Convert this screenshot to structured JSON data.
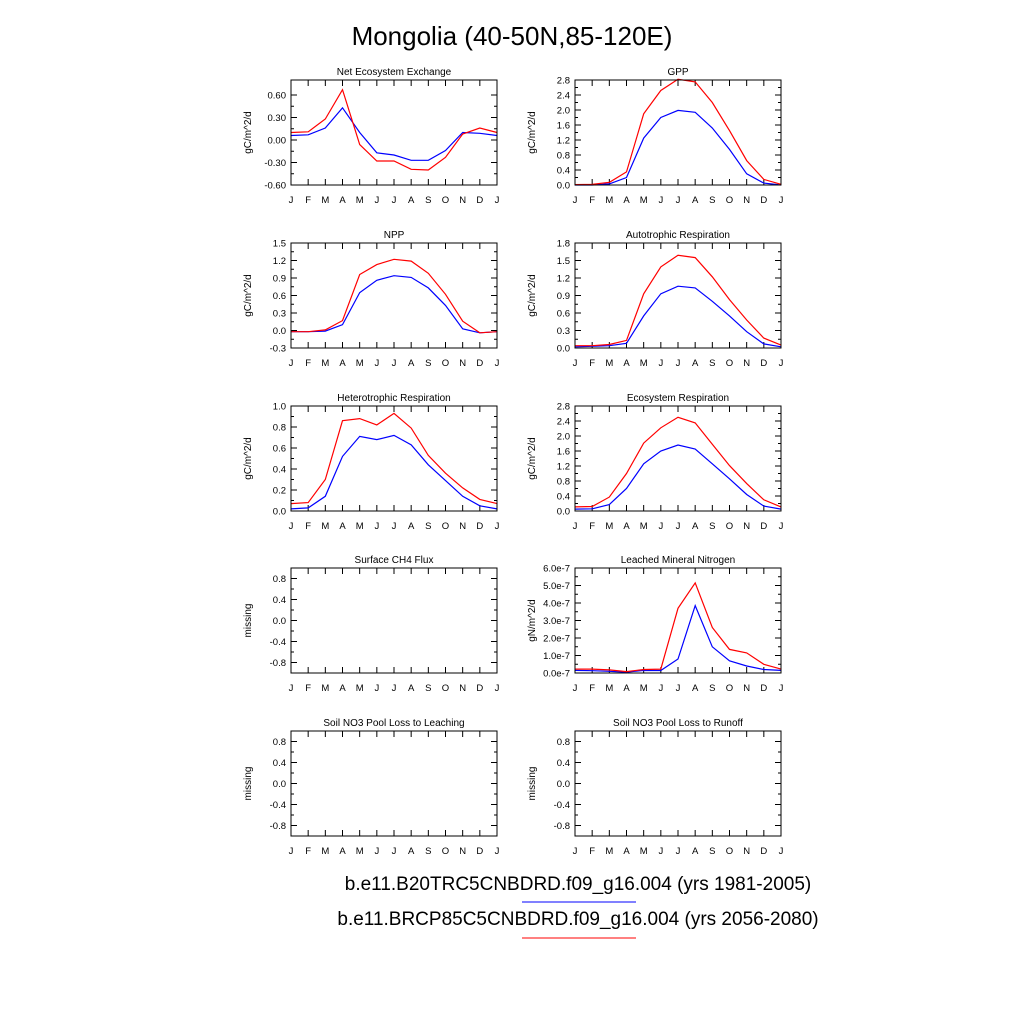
{
  "page": {
    "title": "Mongolia (40-50N,85-120E)",
    "months": [
      "J",
      "F",
      "M",
      "A",
      "M",
      "J",
      "J",
      "A",
      "S",
      "O",
      "N",
      "D",
      "J"
    ]
  },
  "legend": [
    {
      "label": "b.e11.B20TRC5CNBDRD.f09_g16.004 (yrs 1981-2005)",
      "color": "#0000ff"
    },
    {
      "label": "b.e11.BRCP85C5CNBDRD.f09_g16.004 (yrs 2056-2080)",
      "color": "#ff0000"
    }
  ],
  "colors": {
    "historical": "#0000ff",
    "future": "#ff0000"
  },
  "chart_data": [
    {
      "type": "line",
      "title": "Net Ecosystem Exchange",
      "ylabel": "gC/m^2/d",
      "ylim": [
        -0.6,
        0.8
      ],
      "yticks": [
        -0.6,
        -0.3,
        0.0,
        0.3,
        0.6
      ],
      "tick_format": "0.00",
      "x": [
        "J",
        "F",
        "M",
        "A",
        "M",
        "J",
        "J",
        "A",
        "S",
        "O",
        "N",
        "D",
        "J"
      ],
      "series": [
        {
          "color": "#0000ff",
          "values": [
            0.06,
            0.07,
            0.16,
            0.43,
            0.1,
            -0.17,
            -0.2,
            -0.27,
            -0.27,
            -0.14,
            0.1,
            0.09,
            0.06
          ]
        },
        {
          "color": "#ff0000",
          "values": [
            0.1,
            0.11,
            0.28,
            0.67,
            -0.06,
            -0.28,
            -0.28,
            -0.39,
            -0.4,
            -0.23,
            0.08,
            0.16,
            0.1
          ]
        }
      ]
    },
    {
      "type": "line",
      "title": "GPP",
      "ylabel": "gC/m^2/d",
      "ylim": [
        0.0,
        2.8
      ],
      "yticks": [
        0.0,
        0.4,
        0.8,
        1.2,
        1.6,
        2.0,
        2.4,
        2.8
      ],
      "tick_format": "0.0",
      "x": [
        "J",
        "F",
        "M",
        "A",
        "M",
        "J",
        "J",
        "A",
        "S",
        "O",
        "N",
        "D",
        "J"
      ],
      "series": [
        {
          "color": "#0000ff",
          "values": [
            0.0,
            0.0,
            0.03,
            0.2,
            1.25,
            1.8,
            1.99,
            1.94,
            1.52,
            0.95,
            0.3,
            0.05,
            0.0
          ]
        },
        {
          "color": "#ff0000",
          "values": [
            0.01,
            0.02,
            0.07,
            0.35,
            1.9,
            2.52,
            2.82,
            2.75,
            2.2,
            1.45,
            0.65,
            0.15,
            0.02
          ]
        }
      ]
    },
    {
      "type": "line",
      "title": "NPP",
      "ylabel": "gC/m^2/d",
      "ylim": [
        -0.3,
        1.5
      ],
      "yticks": [
        -0.3,
        0.0,
        0.3,
        0.6,
        0.9,
        1.2,
        1.5
      ],
      "tick_format": "0.0",
      "x": [
        "J",
        "F",
        "M",
        "A",
        "M",
        "J",
        "J",
        "A",
        "S",
        "O",
        "N",
        "D",
        "J"
      ],
      "series": [
        {
          "color": "#0000ff",
          "values": [
            -0.02,
            -0.02,
            -0.01,
            0.1,
            0.65,
            0.86,
            0.94,
            0.91,
            0.73,
            0.43,
            0.03,
            -0.04,
            -0.02
          ]
        },
        {
          "color": "#ff0000",
          "values": [
            -0.02,
            -0.02,
            0.01,
            0.17,
            0.96,
            1.13,
            1.22,
            1.19,
            0.98,
            0.62,
            0.16,
            -0.04,
            -0.02
          ]
        }
      ]
    },
    {
      "type": "line",
      "title": "Autotrophic Respiration",
      "ylabel": "gC/m^2/d",
      "ylim": [
        0.0,
        1.8
      ],
      "yticks": [
        0.0,
        0.3,
        0.6,
        0.9,
        1.2,
        1.5,
        1.8
      ],
      "tick_format": "0.0",
      "x": [
        "J",
        "F",
        "M",
        "A",
        "M",
        "J",
        "J",
        "A",
        "S",
        "O",
        "N",
        "D",
        "J"
      ],
      "series": [
        {
          "color": "#0000ff",
          "values": [
            0.02,
            0.03,
            0.04,
            0.08,
            0.55,
            0.93,
            1.06,
            1.03,
            0.8,
            0.55,
            0.28,
            0.07,
            0.02
          ]
        },
        {
          "color": "#ff0000",
          "values": [
            0.04,
            0.04,
            0.06,
            0.13,
            0.93,
            1.39,
            1.59,
            1.55,
            1.22,
            0.83,
            0.48,
            0.17,
            0.05
          ]
        }
      ]
    },
    {
      "type": "line",
      "title": "Heterotrophic Respiration",
      "ylabel": "gC/m^2/d",
      "ylim": [
        0.0,
        1.0
      ],
      "yticks": [
        0.0,
        0.2,
        0.4,
        0.6,
        0.8,
        1.0
      ],
      "tick_format": "0.0",
      "x": [
        "J",
        "F",
        "M",
        "A",
        "M",
        "J",
        "J",
        "A",
        "S",
        "O",
        "N",
        "D",
        "J"
      ],
      "series": [
        {
          "color": "#0000ff",
          "values": [
            0.02,
            0.03,
            0.14,
            0.52,
            0.71,
            0.68,
            0.72,
            0.63,
            0.44,
            0.29,
            0.14,
            0.05,
            0.02
          ]
        },
        {
          "color": "#ff0000",
          "values": [
            0.07,
            0.08,
            0.3,
            0.86,
            0.88,
            0.82,
            0.93,
            0.79,
            0.53,
            0.36,
            0.22,
            0.11,
            0.07
          ]
        }
      ]
    },
    {
      "type": "line",
      "title": "Ecosystem Respiration",
      "ylabel": "gC/m^2/d",
      "ylim": [
        0.0,
        2.8
      ],
      "yticks": [
        0.0,
        0.4,
        0.8,
        1.2,
        1.6,
        2.0,
        2.4,
        2.8
      ],
      "tick_format": "0.0",
      "x": [
        "J",
        "F",
        "M",
        "A",
        "M",
        "J",
        "J",
        "A",
        "S",
        "O",
        "N",
        "D",
        "J"
      ],
      "series": [
        {
          "color": "#0000ff",
          "values": [
            0.05,
            0.06,
            0.17,
            0.6,
            1.26,
            1.6,
            1.76,
            1.65,
            1.26,
            0.86,
            0.44,
            0.13,
            0.05
          ]
        },
        {
          "color": "#ff0000",
          "values": [
            0.11,
            0.12,
            0.37,
            1.0,
            1.81,
            2.22,
            2.5,
            2.35,
            1.78,
            1.21,
            0.73,
            0.3,
            0.11
          ]
        }
      ]
    },
    {
      "type": "line",
      "title": "Surface CH4 Flux",
      "ylabel": "missing",
      "ylim": [
        -1.0,
        1.0
      ],
      "yticks": [
        -0.8,
        -0.4,
        0.0,
        0.4,
        0.8
      ],
      "tick_format": "0.0",
      "x": [
        "J",
        "F",
        "M",
        "A",
        "M",
        "J",
        "J",
        "A",
        "S",
        "O",
        "N",
        "D",
        "J"
      ],
      "series": []
    },
    {
      "type": "line",
      "title": "Leached Mineral Nitrogen",
      "ylabel": "gN/m^2/d",
      "ylim": [
        0,
        6e-07
      ],
      "yticks": [
        0,
        1e-07,
        2e-07,
        3e-07,
        4e-07,
        5e-07,
        6e-07
      ],
      "tick_format": "sci",
      "x": [
        "J",
        "F",
        "M",
        "A",
        "M",
        "J",
        "J",
        "A",
        "S",
        "O",
        "N",
        "D",
        "J"
      ],
      "series": [
        {
          "color": "#0000ff",
          "values": [
            1.5e-08,
            1.3e-08,
            1e-08,
            5e-09,
            1.5e-08,
            1.4e-08,
            8e-08,
            3.85e-07,
            1.5e-07,
            7e-08,
            4e-08,
            2e-08,
            1.5e-08
          ]
        },
        {
          "color": "#ff0000",
          "values": [
            2.2e-08,
            2.2e-08,
            1.8e-08,
            8e-09,
            2e-08,
            2.2e-08,
            3.7e-07,
            5.15e-07,
            2.6e-07,
            1.35e-07,
            1.15e-07,
            5e-08,
            2.2e-08
          ]
        }
      ]
    },
    {
      "type": "line",
      "title": "Soil NO3 Pool Loss to Leaching",
      "ylabel": "missing",
      "ylim": [
        -1.0,
        1.0
      ],
      "yticks": [
        -0.8,
        -0.4,
        0.0,
        0.4,
        0.8
      ],
      "tick_format": "0.0",
      "x": [
        "J",
        "F",
        "M",
        "A",
        "M",
        "J",
        "J",
        "A",
        "S",
        "O",
        "N",
        "D",
        "J"
      ],
      "series": []
    },
    {
      "type": "line",
      "title": "Soil NO3 Pool Loss to Runoff",
      "ylabel": "missing",
      "ylim": [
        -1.0,
        1.0
      ],
      "yticks": [
        -0.8,
        -0.4,
        0.0,
        0.4,
        0.8
      ],
      "tick_format": "0.0",
      "x": [
        "J",
        "F",
        "M",
        "A",
        "M",
        "J",
        "J",
        "A",
        "S",
        "O",
        "N",
        "D",
        "J"
      ],
      "series": []
    }
  ]
}
